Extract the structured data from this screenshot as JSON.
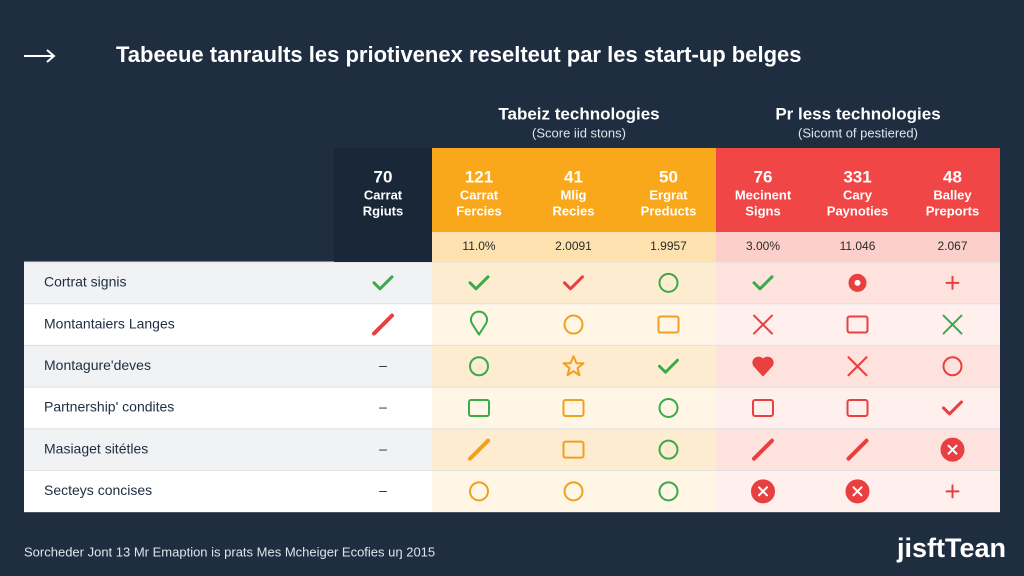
{
  "header": {
    "title": "Tabeeue tanraults les priotivenex reselteut par les start-up belges"
  },
  "groups": [
    {
      "title": "Tabeiz technologies",
      "subtitle": "(Score iid stons)"
    },
    {
      "title": "Pr less technologies",
      "subtitle": "(Sicomt of pestiered)"
    }
  ],
  "columns": [
    {
      "number": "70",
      "label": [
        "Carrat",
        "Rgiuts"
      ]
    },
    {
      "number": "121",
      "label": [
        "Carrat",
        "Fercies"
      ],
      "sub": "11.0%"
    },
    {
      "number": "41",
      "label": [
        "Mlig",
        "Recies"
      ],
      "sub": "2.0091"
    },
    {
      "number": "50",
      "label": [
        "Ergrat",
        "Preducts"
      ],
      "sub": "1.9957"
    },
    {
      "number": "76",
      "label": [
        "Mecinent",
        "Signs"
      ],
      "sub": "3.00%"
    },
    {
      "number": "331",
      "label": [
        "Cary",
        "Paynoties"
      ],
      "sub": "11.046"
    },
    {
      "number": "48",
      "label": [
        "Balley",
        "Preports"
      ],
      "sub": "2.067"
    }
  ],
  "rows": [
    {
      "label": "Cortrat signis"
    },
    {
      "label": "Montantaiers Langes"
    },
    {
      "label": "Montagure'deves",
      "dash": "–"
    },
    {
      "label": "Partnership' condites",
      "dash": "–"
    },
    {
      "label": "Masiaget sitétles",
      "dash": "–"
    },
    {
      "label": "Secteys concises",
      "dash": "–"
    }
  ],
  "footer": {
    "note": "Sorcheder Jont 13 Mr Emaption is prats Mes Mcheiger Ecofies uŋ 2015",
    "brand": "jisftTean"
  }
}
